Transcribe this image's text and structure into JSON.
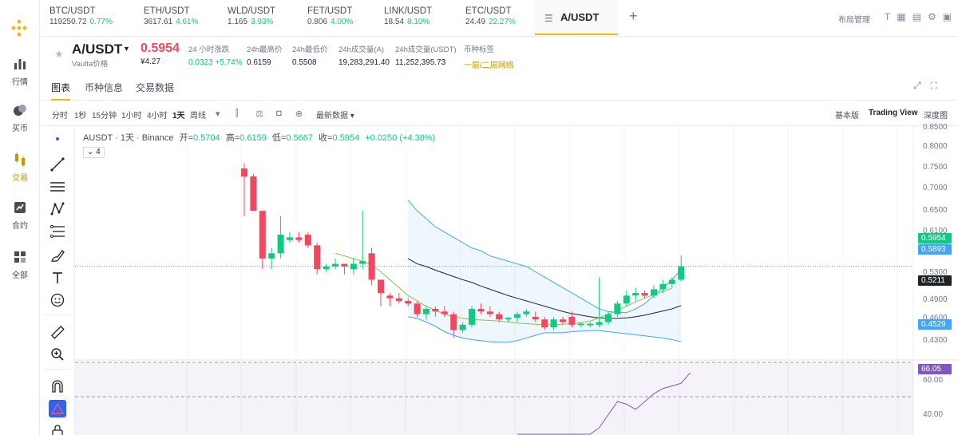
{
  "nav": {
    "items": [
      {
        "label": "行情",
        "icon": "bar-chart-icon"
      },
      {
        "label": "买币",
        "icon": "coins-icon"
      },
      {
        "label": "交易",
        "icon": "candles-icon"
      },
      {
        "label": "合约",
        "icon": "contract-icon"
      },
      {
        "label": "全部",
        "icon": "grid-icon"
      }
    ],
    "active_index": 2
  },
  "tickers": [
    {
      "symbol": "BTC/USDT",
      "price": "119250.72",
      "change": "0.77%"
    },
    {
      "symbol": "ETH/USDT",
      "price": "3617.61",
      "change": "4.61%"
    },
    {
      "symbol": "WLD/USDT",
      "price": "1.165",
      "change": "3.93%"
    },
    {
      "symbol": "FET/USDT",
      "price": "0.806",
      "change": "4.00%"
    },
    {
      "symbol": "LINK/USDT",
      "price": "18.54",
      "change": "8.10%"
    },
    {
      "symbol": "ETC/USDT",
      "price": "24.49",
      "change": "22.27%"
    }
  ],
  "active_tab": "A/USDT",
  "layout_manager": "布局管理",
  "header": {
    "pair": "A/USDT",
    "pair_sub": "Vaulta价格",
    "last_price": "0.5954",
    "last_price_cny": "¥4.27",
    "stats": [
      {
        "label": "24 小时涨跌",
        "value": "0.0323 +5.74%",
        "style": "up"
      },
      {
        "label": "24h最高价",
        "value": "0.6159",
        "style": ""
      },
      {
        "label": "24h最低价",
        "value": "0.5508",
        "style": ""
      },
      {
        "label": "24h成交量(A)",
        "value": "19,283,291.40",
        "style": ""
      },
      {
        "label": "24h成交量(USDT)",
        "value": "11,252,395.73",
        "style": ""
      },
      {
        "label": "币种标签",
        "value": "一层/二层网络",
        "style": "gold"
      }
    ]
  },
  "subtabs": [
    "图表",
    "币种信息",
    "交易数据"
  ],
  "chart_toolbar": {
    "intervals": [
      "分时",
      "1秒",
      "15分钟",
      "1小时",
      "4小时",
      "1天",
      "周线"
    ],
    "active_interval": "1天",
    "latest_data": "最新数据",
    "views": [
      "基本版",
      "Trading View",
      "深度图"
    ],
    "active_view": "Trading View"
  },
  "legend": {
    "title": "AUSDT · 1天 · Binance",
    "open_label": "开=",
    "open": "0.5704",
    "high_label": "高=",
    "high": "0.6159",
    "low_label": "低=",
    "low": "0.5667",
    "close_label": "收=",
    "close": "0.5954",
    "change": "+0.0250 (+4.38%)",
    "indicators_count": "4"
  },
  "price_axis": {
    "labels": [
      "0.8500",
      "0.8000",
      "0.7500",
      "0.7000",
      "0.6500",
      "0.6100",
      "0.5900",
      "0.5300",
      "0.4900",
      "0.4600",
      "0.4300"
    ],
    "tags": [
      {
        "value": "0.5954",
        "color": "#0ecb81"
      },
      {
        "value": "0.5893",
        "color": "#42a5f5"
      },
      {
        "value": "0.5211",
        "color": "#1e2329"
      },
      {
        "value": "0.4529",
        "color": "#42a5f5"
      }
    ]
  },
  "rsi_axis": {
    "labels": [
      "60.00",
      "40.00"
    ],
    "tag": "66.05",
    "tag_color": "#7e57c2"
  },
  "chart_data": {
    "type": "candlestick",
    "title": "AUSDT · 1天 · Binance",
    "ylim": [
      0.42,
      0.86
    ],
    "candles": [
      {
        "o": 0.78,
        "h": 0.79,
        "l": 0.69,
        "c": 0.765
      },
      {
        "o": 0.765,
        "h": 0.77,
        "l": 0.7,
        "c": 0.7
      },
      {
        "o": 0.7,
        "h": 0.7,
        "l": 0.59,
        "c": 0.61
      },
      {
        "o": 0.61,
        "h": 0.63,
        "l": 0.59,
        "c": 0.62
      },
      {
        "o": 0.62,
        "h": 0.69,
        "l": 0.61,
        "c": 0.655
      },
      {
        "o": 0.645,
        "h": 0.66,
        "l": 0.64,
        "c": 0.65
      },
      {
        "o": 0.65,
        "h": 0.66,
        "l": 0.64,
        "c": 0.645
      },
      {
        "o": 0.655,
        "h": 0.66,
        "l": 0.63,
        "c": 0.635
      },
      {
        "o": 0.635,
        "h": 0.64,
        "l": 0.58,
        "c": 0.59
      },
      {
        "o": 0.59,
        "h": 0.6,
        "l": 0.585,
        "c": 0.595
      },
      {
        "o": 0.595,
        "h": 0.61,
        "l": 0.59,
        "c": 0.6
      },
      {
        "o": 0.6,
        "h": 0.6,
        "l": 0.58,
        "c": 0.595
      },
      {
        "o": 0.59,
        "h": 0.61,
        "l": 0.58,
        "c": 0.6
      },
      {
        "o": 0.6,
        "h": 0.7,
        "l": 0.59,
        "c": 0.605
      },
      {
        "o": 0.62,
        "h": 0.63,
        "l": 0.56,
        "c": 0.57
      },
      {
        "o": 0.57,
        "h": 0.57,
        "l": 0.52,
        "c": 0.545
      },
      {
        "o": 0.54,
        "h": 0.545,
        "l": 0.52,
        "c": 0.535
      },
      {
        "o": 0.535,
        "h": 0.545,
        "l": 0.525,
        "c": 0.53
      },
      {
        "o": 0.53,
        "h": 0.535,
        "l": 0.52,
        "c": 0.525
      },
      {
        "o": 0.525,
        "h": 0.53,
        "l": 0.5,
        "c": 0.505
      },
      {
        "o": 0.505,
        "h": 0.52,
        "l": 0.495,
        "c": 0.515
      },
      {
        "o": 0.515,
        "h": 0.52,
        "l": 0.5,
        "c": 0.51
      },
      {
        "o": 0.51,
        "h": 0.52,
        "l": 0.5,
        "c": 0.505
      },
      {
        "o": 0.505,
        "h": 0.51,
        "l": 0.46,
        "c": 0.475
      },
      {
        "o": 0.475,
        "h": 0.49,
        "l": 0.47,
        "c": 0.485
      },
      {
        "o": 0.485,
        "h": 0.52,
        "l": 0.48,
        "c": 0.515
      },
      {
        "o": 0.515,
        "h": 0.525,
        "l": 0.505,
        "c": 0.51
      },
      {
        "o": 0.51,
        "h": 0.52,
        "l": 0.5,
        "c": 0.505
      },
      {
        "o": 0.505,
        "h": 0.51,
        "l": 0.49,
        "c": 0.495
      },
      {
        "o": 0.495,
        "h": 0.5,
        "l": 0.49,
        "c": 0.498
      },
      {
        "o": 0.498,
        "h": 0.51,
        "l": 0.49,
        "c": 0.505
      },
      {
        "o": 0.505,
        "h": 0.515,
        "l": 0.5,
        "c": 0.51
      },
      {
        "o": 0.5,
        "h": 0.51,
        "l": 0.49,
        "c": 0.495
      },
      {
        "o": 0.495,
        "h": 0.5,
        "l": 0.475,
        "c": 0.48
      },
      {
        "o": 0.48,
        "h": 0.5,
        "l": 0.475,
        "c": 0.495
      },
      {
        "o": 0.495,
        "h": 0.5,
        "l": 0.485,
        "c": 0.49
      },
      {
        "o": 0.5,
        "h": 0.51,
        "l": 0.48,
        "c": 0.485
      },
      {
        "o": 0.485,
        "h": 0.49,
        "l": 0.48,
        "c": 0.487
      },
      {
        "o": 0.484,
        "h": 0.49,
        "l": 0.48,
        "c": 0.487
      },
      {
        "o": 0.485,
        "h": 0.575,
        "l": 0.48,
        "c": 0.49
      },
      {
        "o": 0.49,
        "h": 0.51,
        "l": 0.485,
        "c": 0.505
      },
      {
        "o": 0.505,
        "h": 0.53,
        "l": 0.5,
        "c": 0.525
      },
      {
        "o": 0.525,
        "h": 0.55,
        "l": 0.52,
        "c": 0.54
      },
      {
        "o": 0.54,
        "h": 0.555,
        "l": 0.53,
        "c": 0.545
      },
      {
        "o": 0.545,
        "h": 0.55,
        "l": 0.535,
        "c": 0.54
      },
      {
        "o": 0.54,
        "h": 0.56,
        "l": 0.535,
        "c": 0.552
      },
      {
        "o": 0.552,
        "h": 0.57,
        "l": 0.545,
        "c": 0.562
      },
      {
        "o": 0.562,
        "h": 0.575,
        "l": 0.555,
        "c": 0.57
      },
      {
        "o": 0.57,
        "h": 0.6159,
        "l": 0.5667,
        "c": 0.5954
      }
    ],
    "bollinger_start_index": 19,
    "upper_band": [
      0.72,
      0.7,
      0.685,
      0.67,
      0.66,
      0.65,
      0.64,
      0.63,
      0.625,
      0.615,
      0.61,
      0.605,
      0.6,
      0.595,
      0.585,
      0.575,
      0.565,
      0.555,
      0.545,
      0.535,
      0.525,
      0.515,
      0.51,
      0.508,
      0.508,
      0.515,
      0.525,
      0.54,
      0.555,
      0.57,
      0.5893
    ],
    "middle_band": [
      0.61,
      0.6,
      0.595,
      0.588,
      0.582,
      0.576,
      0.57,
      0.565,
      0.558,
      0.552,
      0.546,
      0.54,
      0.535,
      0.53,
      0.525,
      0.52,
      0.515,
      0.51,
      0.506,
      0.503,
      0.5,
      0.498,
      0.497,
      0.497,
      0.498,
      0.5,
      0.503,
      0.507,
      0.511,
      0.515,
      0.5211
    ],
    "lower_band": [
      0.5,
      0.497,
      0.49,
      0.482,
      0.472,
      0.465,
      0.46,
      0.457,
      0.455,
      0.453,
      0.452,
      0.452,
      0.455,
      0.46,
      0.465,
      0.47,
      0.47,
      0.47,
      0.472,
      0.473,
      0.474,
      0.474,
      0.472,
      0.47,
      0.468,
      0.466,
      0.464,
      0.462,
      0.46,
      0.457,
      0.4529
    ],
    "ma_line_start_index": 11,
    "ma_line": [
      0.62,
      0.615,
      0.61,
      0.605,
      0.598,
      0.585,
      0.57,
      0.555,
      0.54,
      0.53,
      0.52,
      0.512,
      0.505,
      0.5,
      0.497,
      0.495,
      0.494,
      0.493,
      0.492,
      0.49,
      0.488,
      0.487,
      0.486,
      0.485,
      0.485,
      0.486,
      0.487,
      0.489,
      0.492,
      0.498,
      0.505,
      0.512,
      0.52,
      0.528,
      0.535,
      0.542,
      0.548,
      0.554
    ],
    "rsi_start_index": 30,
    "rsi": [
      28,
      29,
      30,
      33,
      33,
      34,
      35,
      36,
      39,
      45,
      50,
      55,
      54,
      52,
      55,
      58,
      60,
      61,
      62,
      66.05
    ],
    "rsi_ylim": [
      30,
      70
    ],
    "rsi_levels": [
      70,
      30
    ]
  }
}
